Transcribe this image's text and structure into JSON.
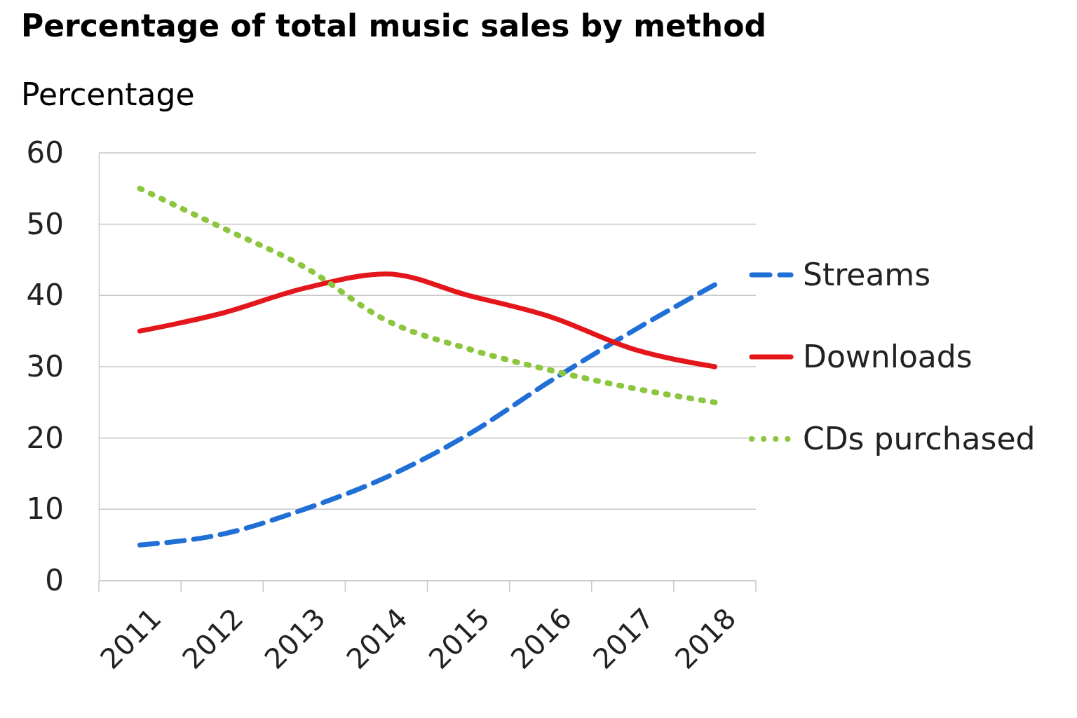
{
  "chart_data": {
    "type": "line",
    "title": "Percentage of total music sales by method",
    "ylabel": "Percentage",
    "categories": [
      "2011",
      "2012",
      "2013",
      "2014",
      "2015",
      "2016",
      "2017",
      "2018"
    ],
    "series": [
      {
        "name": "Streams",
        "color": "#1f6fd6",
        "line_style": "dashed",
        "values": [
          5,
          6.5,
          10,
          14.5,
          20.5,
          28,
          35,
          41.5
        ]
      },
      {
        "name": "Downloads",
        "color": "#e3161b",
        "line_style": "solid",
        "values": [
          35,
          37.5,
          41,
          43,
          40,
          37,
          32.5,
          30
        ]
      },
      {
        "name": "CDs purchased",
        "color": "#8cc63f",
        "line_style": "dotted",
        "values": [
          55,
          49.5,
          44,
          36.5,
          32.5,
          29.5,
          27,
          25
        ]
      }
    ],
    "ylim": [
      0,
      60
    ],
    "yticks": [
      0,
      10,
      20,
      30,
      40,
      50,
      60
    ],
    "grid": "y",
    "legend": "right",
    "marker": "none"
  }
}
